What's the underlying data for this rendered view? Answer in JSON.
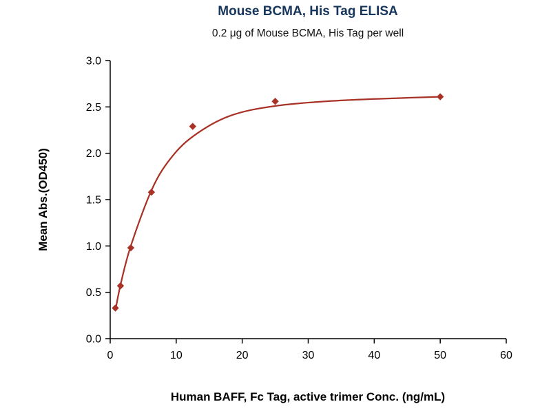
{
  "chart_data": {
    "type": "scatter",
    "title": "Mouse BCMA, His Tag ELISA",
    "subtitle": "0.2 μg of Mouse BCMA, His Tag per well",
    "xlabel": "Human BAFF, Fc Tag, active trimer Conc. (ng/mL)",
    "ylabel": "Mean Abs.(OD450)",
    "xlim": [
      0,
      60
    ],
    "ylim": [
      0,
      3.0
    ],
    "x_ticks": [
      0,
      10,
      20,
      30,
      40,
      50,
      60
    ],
    "y_ticks": [
      0.0,
      0.5,
      1.0,
      1.5,
      2.0,
      2.5,
      3.0
    ],
    "grid": false,
    "legend": "none",
    "marker": "diamond",
    "points": [
      [
        0.78,
        0.33
      ],
      [
        1.56,
        0.57
      ],
      [
        3.12,
        0.98
      ],
      [
        6.25,
        1.58
      ],
      [
        12.5,
        2.29
      ],
      [
        25,
        2.56
      ],
      [
        50,
        2.61
      ]
    ],
    "fit_curve": [
      [
        0.78,
        0.3
      ],
      [
        1.56,
        0.58
      ],
      [
        3.12,
        1.0
      ],
      [
        6.25,
        1.6
      ],
      [
        9,
        1.93
      ],
      [
        12.5,
        2.18
      ],
      [
        18,
        2.4
      ],
      [
        25,
        2.51
      ],
      [
        35,
        2.57
      ],
      [
        50,
        2.61
      ]
    ],
    "colors": {
      "series": "#a93226",
      "axis": "#000000",
      "title": "#17365d"
    }
  }
}
